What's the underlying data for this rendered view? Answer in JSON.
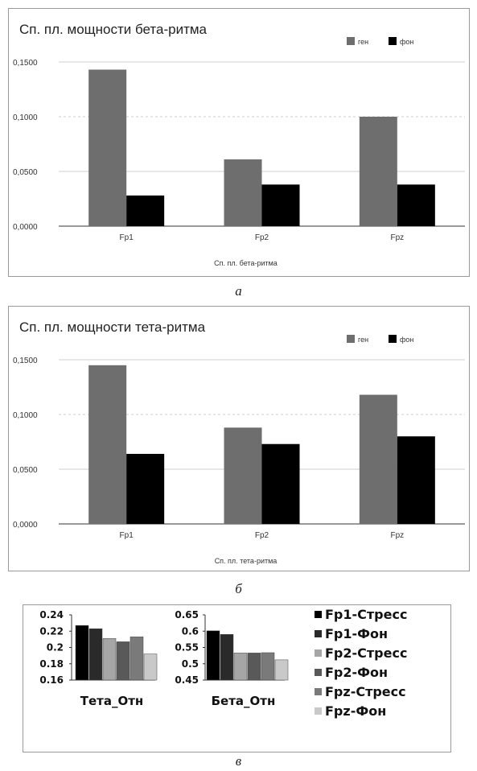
{
  "captions": {
    "a": "а",
    "b": "б",
    "c": "в"
  },
  "chart_data": [
    {
      "type": "bar",
      "title": "Сп. пл. мощности бета-ритма",
      "xlabel": "Сп. пл. бета-ритма",
      "ylabel": "",
      "categories": [
        "Fp1",
        "Fp2",
        "Fpz"
      ],
      "yticks": [
        "0,0000",
        "0,0500",
        "0,1000",
        "0,1500"
      ],
      "ylim": [
        0,
        0.15
      ],
      "legend_position": "top-right",
      "series": [
        {
          "name": "ген",
          "color": "#6e6e6e",
          "values": [
            0.143,
            0.061,
            0.1
          ]
        },
        {
          "name": "фон",
          "color": "#000000",
          "values": [
            0.028,
            0.038,
            0.038
          ]
        }
      ]
    },
    {
      "type": "bar",
      "title": "Сп. пл. мощности тета-ритма",
      "xlabel": "Сп. пл. тета-ритма",
      "ylabel": "",
      "categories": [
        "Fp1",
        "Fp2",
        "Fpz"
      ],
      "yticks": [
        "0,0000",
        "0,0500",
        "0,1000",
        "0,1500"
      ],
      "ylim": [
        0,
        0.15
      ],
      "legend_position": "top-right",
      "series": [
        {
          "name": "ген",
          "color": "#6e6e6e",
          "values": [
            0.145,
            0.088,
            0.118
          ]
        },
        {
          "name": "фон",
          "color": "#000000",
          "values": [
            0.064,
            0.073,
            0.08
          ]
        }
      ]
    },
    {
      "type": "bar",
      "subcharts": [
        {
          "xlabel": "Тета_Отн",
          "ylim": [
            0.16,
            0.24
          ],
          "yticks": [
            "0.16",
            "0.18",
            "0.2",
            "0.22",
            "0.24"
          ],
          "values": [
            0.227,
            0.223,
            0.211,
            0.207,
            0.213,
            0.192
          ]
        },
        {
          "xlabel": "Бета_Отн",
          "ylim": [
            0.45,
            0.65
          ],
          "yticks": [
            "0.45",
            "0.5",
            "0.55",
            "0.6",
            "0.65"
          ],
          "values": [
            0.601,
            0.59,
            0.533,
            0.533,
            0.534,
            0.512
          ]
        }
      ],
      "legend_position": "right",
      "series": [
        {
          "name": "Fp1-Стресс",
          "color": "#000000"
        },
        {
          "name": "Fp1-Фон",
          "color": "#2a2a2a"
        },
        {
          "name": "Fp2-Стресс",
          "color": "#a6a6a6"
        },
        {
          "name": "Fp2-Фон",
          "color": "#595959"
        },
        {
          "name": "Fpz-Стресс",
          "color": "#7a7a7a"
        },
        {
          "name": "Fpz-Фон",
          "color": "#c9c9c9"
        }
      ]
    }
  ]
}
